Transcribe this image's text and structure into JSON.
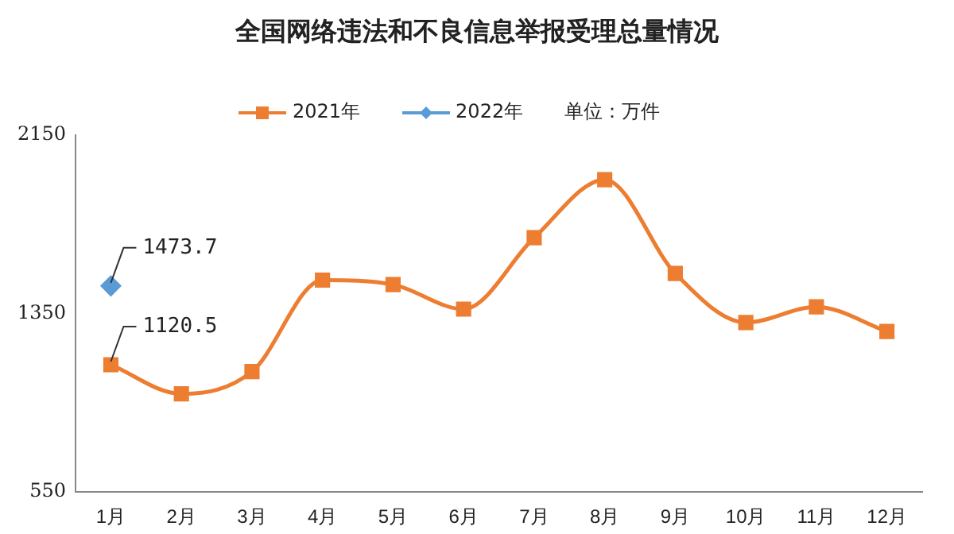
{
  "chart_data": {
    "type": "line",
    "title": "全国网络违法和不良信息举报受理总量情况",
    "categories": [
      "1月",
      "2月",
      "3月",
      "4月",
      "5月",
      "6月",
      "7月",
      "8月",
      "9月",
      "10月",
      "11月",
      "12月"
    ],
    "series": [
      {
        "name": "2021年",
        "color": "#ed7d31",
        "marker": "square",
        "values": [
          1120.5,
          990,
          1090,
          1500,
          1480,
          1370,
          1690,
          1950,
          1530,
          1310,
          1380,
          1270
        ],
        "value_labels": [
          "1120.5",
          null,
          null,
          null,
          null,
          null,
          null,
          null,
          null,
          null,
          null,
          null
        ]
      },
      {
        "name": "2022年",
        "color": "#5b9bd5",
        "marker": "diamond",
        "values": [
          1473.7,
          null,
          null,
          null,
          null,
          null,
          null,
          null,
          null,
          null,
          null,
          null
        ],
        "value_labels": [
          "1473.7",
          null,
          null,
          null,
          null,
          null,
          null,
          null,
          null,
          null,
          null,
          null
        ]
      }
    ],
    "ylim": [
      550,
      2150
    ],
    "yticks": [
      550,
      1350,
      2150
    ],
    "grid": false,
    "legend": "top",
    "annotations": [
      "单位：万件"
    ]
  }
}
